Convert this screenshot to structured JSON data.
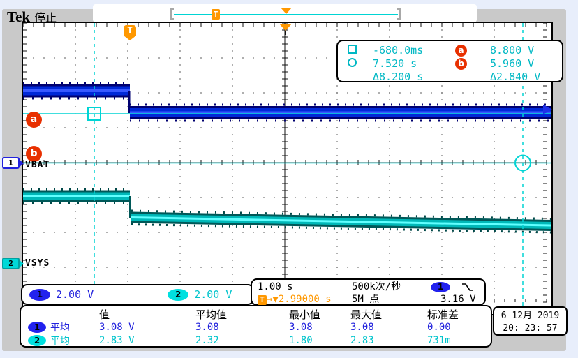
{
  "header": {
    "brand": "Tek",
    "acq_status": "停止"
  },
  "record_bar": {
    "t_label": "T"
  },
  "trigger_flag_label": "T",
  "cursor_readout": {
    "a_time": "-680.0ms",
    "b_time": "7.520 s",
    "delta_time": "Δ8.200 s",
    "a_label": "a",
    "b_label": "b",
    "a_volt": "8.800 V",
    "b_volt": "5.960 V",
    "delta_volt": "Δ2.840 V"
  },
  "channels": {
    "ch1": {
      "num": "1",
      "name": "VBAT",
      "scale": "2.00 V",
      "color": "#2222dd"
    },
    "ch2": {
      "num": "2",
      "name": "VSYS",
      "scale": "2.00 V",
      "color": "#00c4cc"
    }
  },
  "horizontal": {
    "scale": "1.00 s",
    "sample_rate": "500k次/秒",
    "record_length": "5M 点"
  },
  "trigger": {
    "t_label": "T",
    "time_readout": "→▼2.99000 s",
    "source": "1",
    "level": "3.16 V",
    "slope": "falling-edge"
  },
  "measurements": {
    "headers": [
      "值",
      "平均值",
      "最小值",
      "最大值",
      "标准差"
    ],
    "rows": [
      {
        "ch": "1",
        "type": "平均",
        "values": [
          "3.08 V",
          "3.08",
          "3.08",
          "3.08",
          "0.00"
        ]
      },
      {
        "ch": "2",
        "type": "平均",
        "values": [
          "2.83 V",
          "2.32",
          "1.80",
          "2.83",
          "731m"
        ]
      }
    ]
  },
  "datetime": {
    "date": "6 12月  2019",
    "time": "20: 23: 57"
  },
  "waveform_summary": {
    "ch1": {
      "label": "VBAT",
      "behavior": "flat high level ~4.2 V, steps down at trigger to ~3.08 V and stays flat",
      "volts_per_div": 2.0
    },
    "ch2": {
      "label": "VSYS",
      "behavior": "flat ~3.9 V, steps down at trigger to ~2.9 V then slowly ramps down to ~2.4 V",
      "volts_per_div": 2.0
    },
    "time_per_div": "1.00 s",
    "trigger_time_px_div": "trigger at 2nd division from left"
  }
}
